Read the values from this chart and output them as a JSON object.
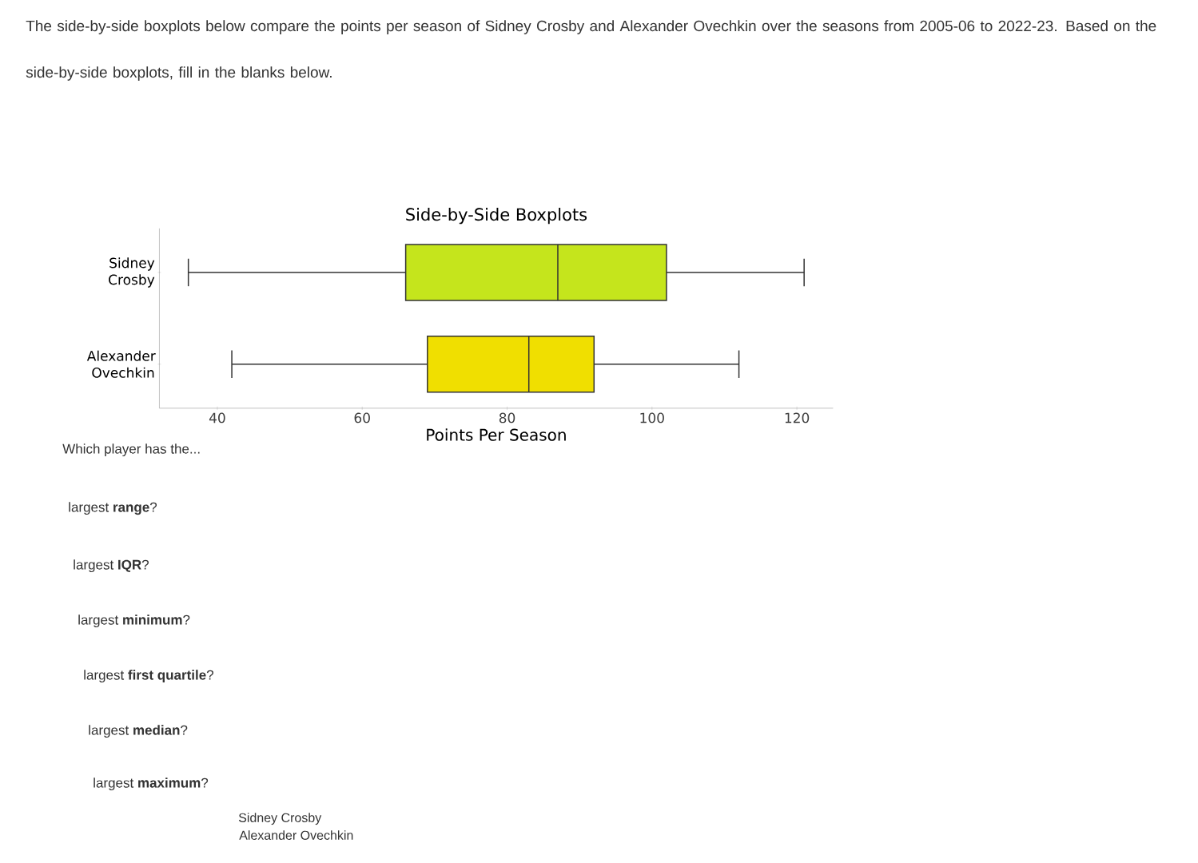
{
  "chart_data": {
    "type": "box",
    "title": "Side-by-Side Boxplots",
    "xlabel": "Points Per Season",
    "orientation": "horizontal",
    "categories": [
      "Sidney Crosby",
      "Alexander Ovechkin"
    ],
    "colors": [
      "#c5e51c",
      "#f0df00"
    ],
    "boxes": [
      {
        "low": 36,
        "q1": 66,
        "median": 87,
        "q3": 102,
        "high": 121
      },
      {
        "low": 42,
        "q1": 69,
        "median": 83,
        "q3": 92,
        "high": 112
      }
    ],
    "xlim": [
      32,
      125
    ],
    "xticks": [
      40,
      60,
      80,
      100,
      120
    ],
    "annotations": [
      "The side-by-side boxplots below compare the points per season of Sidney Crosby and Alexander Ovechkin over the seasons from 2005-06 to 2022-23. Based on the side-by-side boxplots, fill in the blanks below.",
      "Which player has the...",
      "largest **range**?",
      "largest **IQR**?",
      "largest **minimum**?",
      "largest **first quartile**?",
      "largest **median**?",
      "largest **maximum**?",
      "Sidney Crosby",
      "Alexander Ovechkin"
    ]
  }
}
